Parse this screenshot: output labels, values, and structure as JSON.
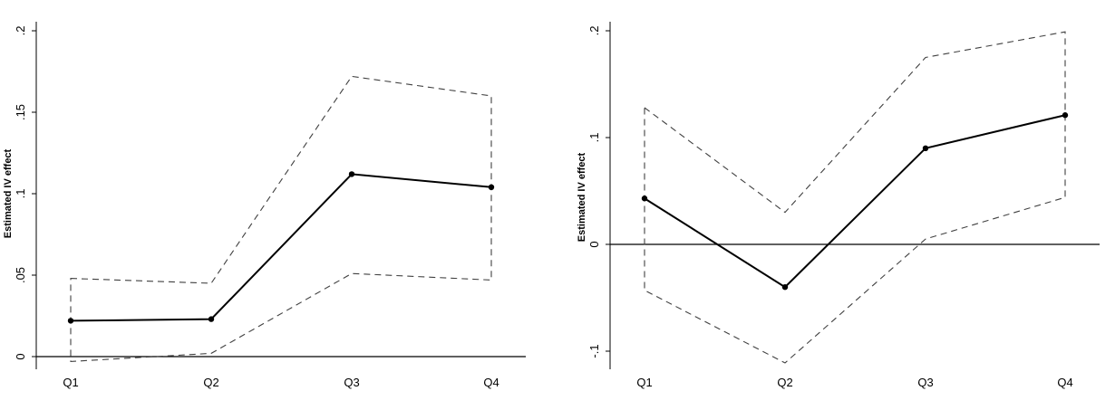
{
  "chart_data": [
    {
      "type": "line",
      "title": "",
      "xlabel": "",
      "ylabel": "Estimated IV effect",
      "categories": [
        "Q1",
        "Q2",
        "Q3",
        "Q4"
      ],
      "ylim": [
        0,
        0.2
      ],
      "yticks": [
        0,
        0.05,
        0.1,
        0.15,
        0.2
      ],
      "ytick_labels": [
        "0",
        ".05",
        ".1",
        ".15",
        ".2"
      ],
      "series": [
        {
          "values": [
            0.022,
            0.023,
            0.112,
            0.104
          ],
          "style": "solid-markers",
          "color": "#000000"
        },
        {
          "values": [
            0.048,
            0.045,
            0.172,
            0.16
          ],
          "style": "dashed",
          "color": "#404040"
        },
        {
          "values": [
            -0.003,
            0.002,
            0.051,
            0.047
          ],
          "style": "dashed",
          "color": "#404040"
        }
      ],
      "reference_line": 0,
      "grid": false
    },
    {
      "type": "line",
      "title": "",
      "xlabel": "",
      "ylabel": "Estimated IV effect",
      "categories": [
        "Q1",
        "Q2",
        "Q3",
        "Q4"
      ],
      "ylim": [
        -0.1,
        0.2
      ],
      "yticks": [
        -0.1,
        0,
        0.1,
        0.2
      ],
      "ytick_labels": [
        "-.1",
        "0",
        ".1",
        ".2"
      ],
      "series": [
        {
          "values": [
            0.043,
            -0.04,
            0.09,
            0.121
          ],
          "style": "solid-markers",
          "color": "#000000"
        },
        {
          "values": [
            0.128,
            0.03,
            0.175,
            0.199
          ],
          "style": "dashed",
          "color": "#404040"
        },
        {
          "values": [
            -0.043,
            -0.111,
            0.005,
            0.044
          ],
          "style": "dashed",
          "color": "#404040"
        }
      ],
      "reference_line": 0,
      "grid": false
    }
  ]
}
